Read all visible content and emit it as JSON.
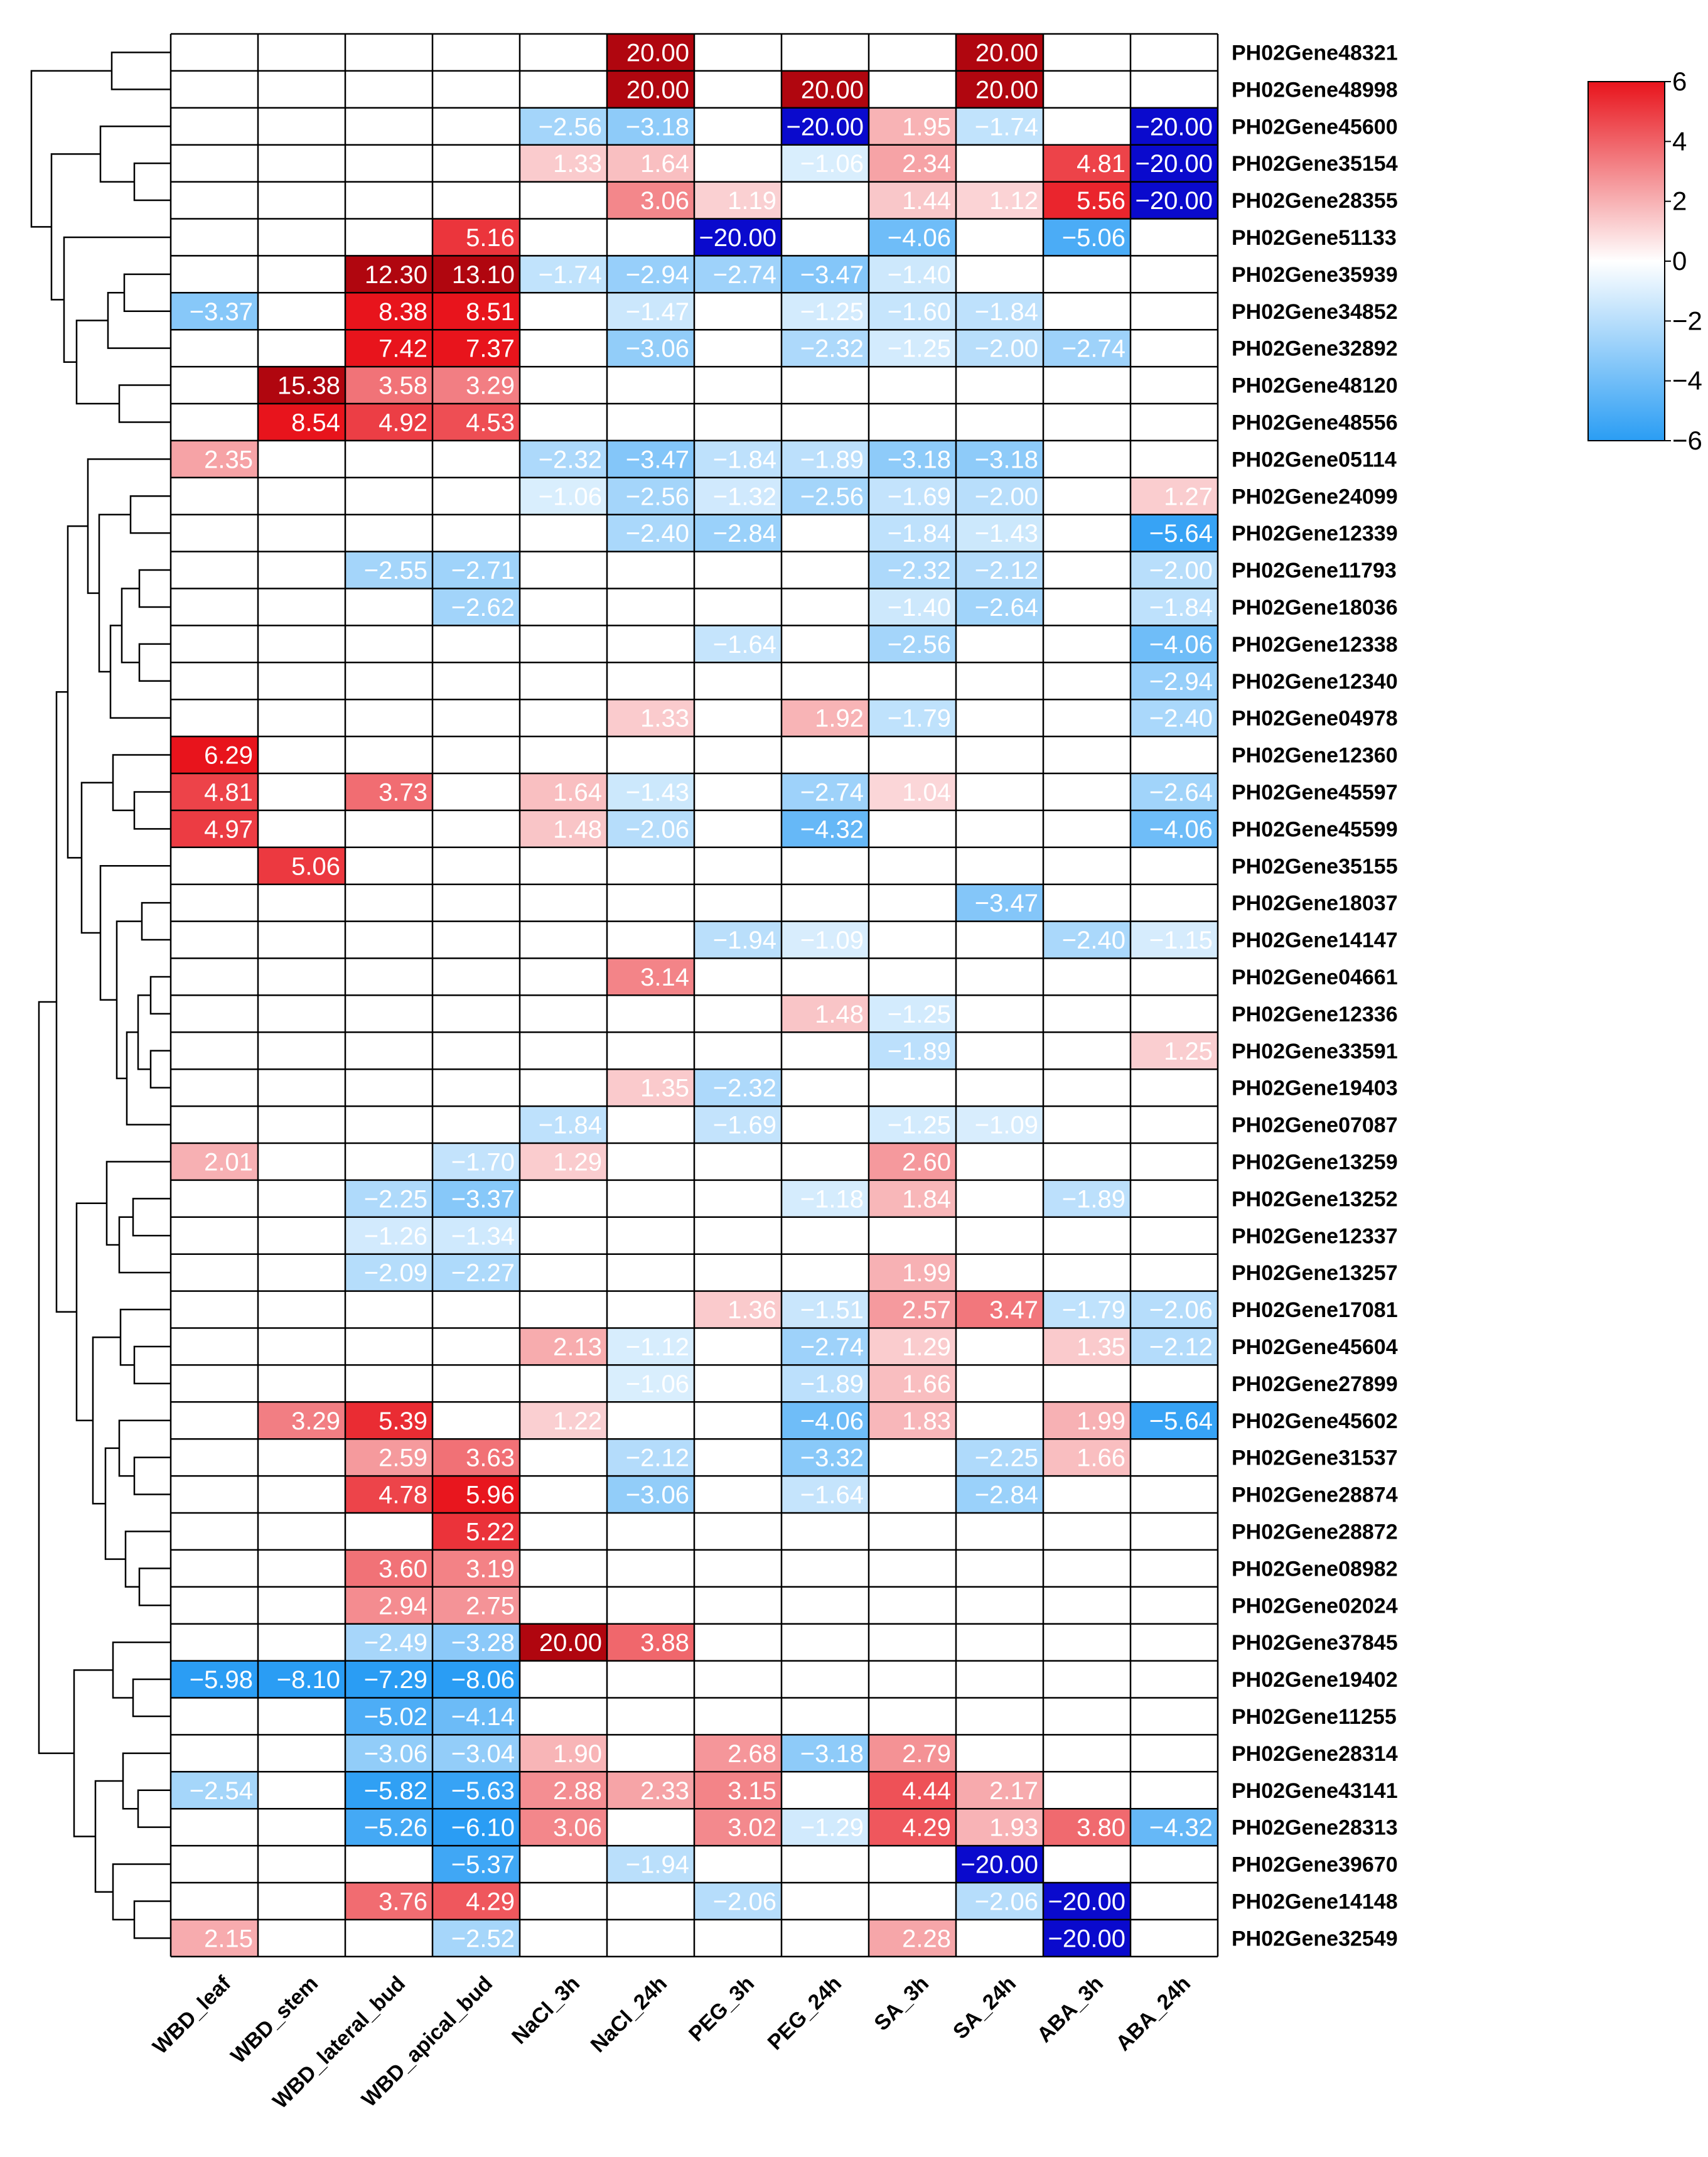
{
  "chart_data": {
    "type": "heatmap",
    "title": "",
    "columns": [
      "WBD_leaf",
      "WBD_stem",
      "WBD_lateral_bud",
      "WBD_apical_bud",
      "NaCl_3h",
      "NaCl_24h",
      "PEG_3h",
      "PEG_24h",
      "SA_3h",
      "SA_24h",
      "ABA_3h",
      "ABA_24h"
    ],
    "rows": [
      {
        "gene": "PH02Gene48321",
        "values": [
          null,
          null,
          null,
          null,
          null,
          "20.00",
          null,
          null,
          null,
          "20.00",
          null,
          null
        ]
      },
      {
        "gene": "PH02Gene48998",
        "values": [
          null,
          null,
          null,
          null,
          null,
          "20.00",
          null,
          "20.00",
          null,
          "20.00",
          null,
          null
        ]
      },
      {
        "gene": "PH02Gene45600",
        "values": [
          null,
          null,
          null,
          null,
          "−2.56",
          "−3.18",
          null,
          "−20.00",
          "1.95",
          "−1.74",
          null,
          "−20.00"
        ]
      },
      {
        "gene": "PH02Gene35154",
        "values": [
          null,
          null,
          null,
          null,
          "1.33",
          "1.64",
          null,
          "−1.06",
          "2.34",
          null,
          "4.81",
          "−20.00"
        ]
      },
      {
        "gene": "PH02Gene28355",
        "values": [
          null,
          null,
          null,
          null,
          null,
          "3.06",
          "1.19",
          null,
          "1.44",
          "1.12",
          "5.56",
          "−20.00"
        ]
      },
      {
        "gene": "PH02Gene51133",
        "values": [
          null,
          null,
          null,
          "5.16",
          null,
          null,
          "−20.00",
          null,
          "−4.06",
          null,
          "−5.06",
          null
        ]
      },
      {
        "gene": "PH02Gene35939",
        "values": [
          null,
          null,
          "12.30",
          "13.10",
          "−1.74",
          "−2.94",
          "−2.74",
          "−3.47",
          "−1.40",
          null,
          null,
          null
        ]
      },
      {
        "gene": "PH02Gene34852",
        "values": [
          "−3.37",
          null,
          "8.38",
          "8.51",
          null,
          "−1.47",
          null,
          "−1.25",
          "−1.60",
          "−1.84",
          null,
          null
        ]
      },
      {
        "gene": "PH02Gene32892",
        "values": [
          null,
          null,
          "7.42",
          "7.37",
          null,
          "−3.06",
          null,
          "−2.32",
          "−1.25",
          "−2.00",
          "−2.74",
          null
        ]
      },
      {
        "gene": "PH02Gene48120",
        "values": [
          null,
          "15.38",
          "3.58",
          "3.29",
          null,
          null,
          null,
          null,
          null,
          null,
          null,
          null
        ]
      },
      {
        "gene": "PH02Gene48556",
        "values": [
          null,
          "8.54",
          "4.92",
          "4.53",
          null,
          null,
          null,
          null,
          null,
          null,
          null,
          null
        ]
      },
      {
        "gene": "PH02Gene05114",
        "values": [
          "2.35",
          null,
          null,
          null,
          "−2.32",
          "−3.47",
          "−1.84",
          "−1.89",
          "−3.18",
          "−3.18",
          null,
          null
        ]
      },
      {
        "gene": "PH02Gene24099",
        "values": [
          null,
          null,
          null,
          null,
          "−1.06",
          "−2.56",
          "−1.32",
          "−2.56",
          "−1.69",
          "−2.00",
          null,
          "1.27"
        ]
      },
      {
        "gene": "PH02Gene12339",
        "values": [
          null,
          null,
          null,
          null,
          null,
          "−2.40",
          "−2.84",
          null,
          "−1.84",
          "−1.43",
          null,
          "−5.64"
        ]
      },
      {
        "gene": "PH02Gene11793",
        "values": [
          null,
          null,
          "−2.55",
          "−2.71",
          null,
          null,
          null,
          null,
          "−2.32",
          "−2.12",
          null,
          "−2.00"
        ]
      },
      {
        "gene": "PH02Gene18036",
        "values": [
          null,
          null,
          null,
          "−2.62",
          null,
          null,
          null,
          null,
          "−1.40",
          "−2.64",
          null,
          "−1.84"
        ]
      },
      {
        "gene": "PH02Gene12338",
        "values": [
          null,
          null,
          null,
          null,
          null,
          null,
          "−1.64",
          null,
          "−2.56",
          null,
          null,
          "−4.06"
        ]
      },
      {
        "gene": "PH02Gene12340",
        "values": [
          null,
          null,
          null,
          null,
          null,
          null,
          null,
          null,
          null,
          null,
          null,
          "−2.94"
        ]
      },
      {
        "gene": "PH02Gene04978",
        "values": [
          null,
          null,
          null,
          null,
          null,
          "1.33",
          null,
          "1.92",
          "−1.79",
          null,
          null,
          "−2.40"
        ]
      },
      {
        "gene": "PH02Gene12360",
        "values": [
          "6.29",
          null,
          null,
          null,
          null,
          null,
          null,
          null,
          null,
          null,
          null,
          null
        ]
      },
      {
        "gene": "PH02Gene45597",
        "values": [
          "4.81",
          null,
          "3.73",
          null,
          "1.64",
          "−1.43",
          null,
          "−2.74",
          "1.04",
          null,
          null,
          "−2.64"
        ]
      },
      {
        "gene": "PH02Gene45599",
        "values": [
          "4.97",
          null,
          null,
          null,
          "1.48",
          "−2.06",
          null,
          "−4.32",
          null,
          null,
          null,
          "−4.06"
        ]
      },
      {
        "gene": "PH02Gene35155",
        "values": [
          null,
          "5.06",
          null,
          null,
          null,
          null,
          null,
          null,
          null,
          null,
          null,
          null
        ]
      },
      {
        "gene": "PH02Gene18037",
        "values": [
          null,
          null,
          null,
          null,
          null,
          null,
          null,
          null,
          null,
          "−3.47",
          null,
          null
        ]
      },
      {
        "gene": "PH02Gene14147",
        "values": [
          null,
          null,
          null,
          null,
          null,
          null,
          "−1.94",
          "−1.09",
          null,
          null,
          "−2.40",
          "−1.15"
        ]
      },
      {
        "gene": "PH02Gene04661",
        "values": [
          null,
          null,
          null,
          null,
          null,
          "3.14",
          null,
          null,
          null,
          null,
          null,
          null
        ]
      },
      {
        "gene": "PH02Gene12336",
        "values": [
          null,
          null,
          null,
          null,
          null,
          null,
          null,
          "1.48",
          "−1.25",
          null,
          null,
          null
        ]
      },
      {
        "gene": "PH02Gene33591",
        "values": [
          null,
          null,
          null,
          null,
          null,
          null,
          null,
          null,
          "−1.89",
          null,
          null,
          "1.25"
        ]
      },
      {
        "gene": "PH02Gene19403",
        "values": [
          null,
          null,
          null,
          null,
          null,
          "1.35",
          "−2.32",
          null,
          null,
          null,
          null,
          null
        ]
      },
      {
        "gene": "PH02Gene07087",
        "values": [
          null,
          null,
          null,
          null,
          "−1.84",
          null,
          "−1.69",
          null,
          "−1.25",
          "−1.09",
          null,
          null
        ]
      },
      {
        "gene": "PH02Gene13259",
        "values": [
          "2.01",
          null,
          null,
          "−1.70",
          "1.29",
          null,
          null,
          null,
          "2.60",
          null,
          null,
          null
        ]
      },
      {
        "gene": "PH02Gene13252",
        "values": [
          null,
          null,
          "−2.25",
          "−3.37",
          null,
          null,
          null,
          "−1.18",
          "1.84",
          null,
          "−1.89",
          null
        ]
      },
      {
        "gene": "PH02Gene12337",
        "values": [
          null,
          null,
          "−1.26",
          "−1.34",
          null,
          null,
          null,
          null,
          null,
          null,
          null,
          null
        ]
      },
      {
        "gene": "PH02Gene13257",
        "values": [
          null,
          null,
          "−2.09",
          "−2.27",
          null,
          null,
          null,
          null,
          "1.99",
          null,
          null,
          null
        ]
      },
      {
        "gene": "PH02Gene17081",
        "values": [
          null,
          null,
          null,
          null,
          null,
          null,
          "1.36",
          "−1.51",
          "2.57",
          "3.47",
          "−1.79",
          "−2.06"
        ]
      },
      {
        "gene": "PH02Gene45604",
        "values": [
          null,
          null,
          null,
          null,
          "2.13",
          "−1.12",
          null,
          "−2.74",
          "1.29",
          null,
          "1.35",
          "−2.12"
        ]
      },
      {
        "gene": "PH02Gene27899",
        "values": [
          null,
          null,
          null,
          null,
          null,
          "−1.06",
          null,
          "−1.89",
          "1.66",
          null,
          null,
          null
        ]
      },
      {
        "gene": "PH02Gene45602",
        "values": [
          null,
          "3.29",
          "5.39",
          null,
          "1.22",
          null,
          null,
          "−4.06",
          "1.83",
          null,
          "1.99",
          "−5.64"
        ]
      },
      {
        "gene": "PH02Gene31537",
        "values": [
          null,
          null,
          "2.59",
          "3.63",
          null,
          "−2.12",
          null,
          "−3.32",
          null,
          "−2.25",
          "1.66",
          null
        ]
      },
      {
        "gene": "PH02Gene28874",
        "values": [
          null,
          null,
          "4.78",
          "5.96",
          null,
          "−3.06",
          null,
          "−1.64",
          null,
          "−2.84",
          null,
          null
        ]
      },
      {
        "gene": "PH02Gene28872",
        "values": [
          null,
          null,
          null,
          "5.22",
          null,
          null,
          null,
          null,
          null,
          null,
          null,
          null
        ]
      },
      {
        "gene": "PH02Gene08982",
        "values": [
          null,
          null,
          "3.60",
          "3.19",
          null,
          null,
          null,
          null,
          null,
          null,
          null,
          null
        ]
      },
      {
        "gene": "PH02Gene02024",
        "values": [
          null,
          null,
          "2.94",
          "2.75",
          null,
          null,
          null,
          null,
          null,
          null,
          null,
          null
        ]
      },
      {
        "gene": "PH02Gene37845",
        "values": [
          null,
          null,
          "−2.49",
          "−3.28",
          "20.00",
          "3.88",
          null,
          null,
          null,
          null,
          null,
          null
        ]
      },
      {
        "gene": "PH02Gene19402",
        "values": [
          "−5.98",
          "−8.10",
          "−7.29",
          "−8.06",
          null,
          null,
          null,
          null,
          null,
          null,
          null,
          null
        ]
      },
      {
        "gene": "PH02Gene11255",
        "values": [
          null,
          null,
          "−5.02",
          "−4.14",
          null,
          null,
          null,
          null,
          null,
          null,
          null,
          null
        ]
      },
      {
        "gene": "PH02Gene28314",
        "values": [
          null,
          null,
          "−3.06",
          "−3.04",
          "1.90",
          null,
          "2.68",
          "−3.18",
          "2.79",
          null,
          null,
          null
        ]
      },
      {
        "gene": "PH02Gene43141",
        "values": [
          "−2.54",
          null,
          "−5.82",
          "−5.63",
          "2.88",
          "2.33",
          "3.15",
          null,
          "4.44",
          "2.17",
          null,
          null
        ]
      },
      {
        "gene": "PH02Gene28313",
        "values": [
          null,
          null,
          "−5.26",
          "−6.10",
          "3.06",
          null,
          "3.02",
          "−1.29",
          "4.29",
          "1.93",
          "3.80",
          "−4.32"
        ]
      },
      {
        "gene": "PH02Gene39670",
        "values": [
          null,
          null,
          null,
          "−5.37",
          null,
          "−1.94",
          null,
          null,
          null,
          "−20.00",
          null,
          null
        ]
      },
      {
        "gene": "PH02Gene14148",
        "values": [
          null,
          null,
          "3.76",
          "4.29",
          null,
          null,
          "−2.06",
          null,
          null,
          "−2.06",
          "−20.00",
          null
        ]
      },
      {
        "gene": "PH02Gene32549",
        "values": [
          "2.15",
          null,
          null,
          "−2.52",
          null,
          null,
          null,
          null,
          "2.28",
          null,
          "−20.00",
          null
        ]
      }
    ],
    "colorbar": {
      "min": -6,
      "max": 6,
      "ticks": [
        6,
        4,
        2,
        0,
        -2,
        -4,
        -6
      ],
      "tick_labels": [
        "6",
        "4",
        "2",
        "0",
        "−2",
        "−4",
        "−6"
      ],
      "low_color": "#2a9df4",
      "mid_color": "#ffffff",
      "high_color": "#e8141c",
      "extreme_high_color": "#b0060f",
      "extreme_low_color": "#0a0acd"
    },
    "dendrogram": "hierarchical row clustering (left)"
  }
}
